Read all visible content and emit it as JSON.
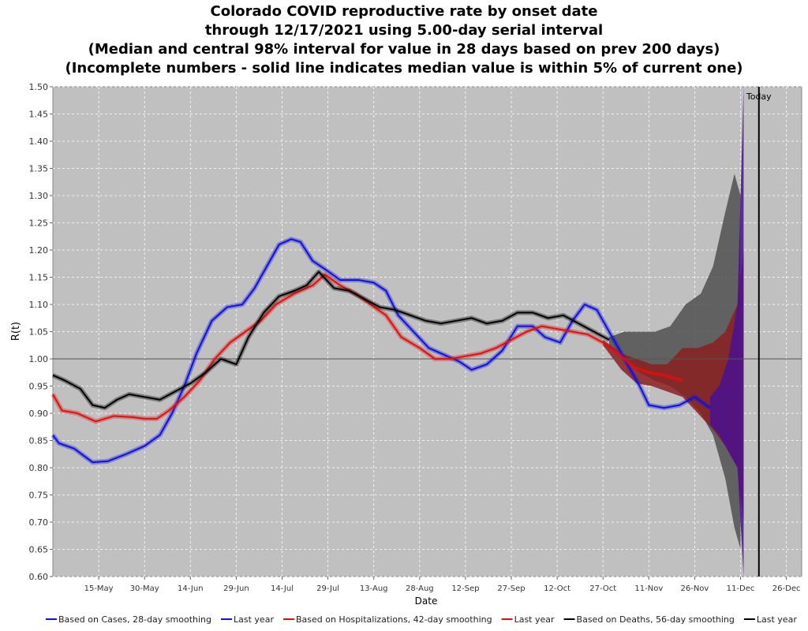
{
  "chart_data": {
    "type": "line",
    "title_lines": [
      "Colorado COVID reproductive rate by onset date",
      "through 12/17/2021 using 5.00-day serial interval",
      "(Median and central 98% interval for value in 28 days based on prev 200 days)",
      "(Incomplete numbers - solid line indicates median value is within 5% of current one)"
    ],
    "xlabel": "Date",
    "ylabel": "R(t)",
    "x_start": "2021-04-30",
    "x_end": "2021-12-31",
    "ylim": [
      0.6,
      1.5
    ],
    "yticks": [
      "0.60",
      "0.65",
      "0.70",
      "0.75",
      "0.80",
      "0.85",
      "0.90",
      "0.95",
      "1.00",
      "1.05",
      "1.10",
      "1.15",
      "1.20",
      "1.25",
      "1.30",
      "1.35",
      "1.40",
      "1.45",
      "1.50"
    ],
    "xticks": [
      {
        "date": "2021-05-15",
        "label": "15-May"
      },
      {
        "date": "2021-05-30",
        "label": "30-May"
      },
      {
        "date": "2021-06-14",
        "label": "14-Jun"
      },
      {
        "date": "2021-06-29",
        "label": "29-Jun"
      },
      {
        "date": "2021-07-14",
        "label": "14-Jul"
      },
      {
        "date": "2021-07-29",
        "label": "29-Jul"
      },
      {
        "date": "2021-08-13",
        "label": "13-Aug"
      },
      {
        "date": "2021-08-28",
        "label": "28-Aug"
      },
      {
        "date": "2021-09-12",
        "label": "12-Sep"
      },
      {
        "date": "2021-09-27",
        "label": "27-Sep"
      },
      {
        "date": "2021-10-12",
        "label": "12-Oct"
      },
      {
        "date": "2021-10-27",
        "label": "27-Oct"
      },
      {
        "date": "2021-11-11",
        "label": "11-Nov"
      },
      {
        "date": "2021-11-26",
        "label": "26-Nov"
      },
      {
        "date": "2021-12-11",
        "label": "11-Dec"
      },
      {
        "date": "2021-12-26",
        "label": "26-Dec"
      }
    ],
    "grid": true,
    "reference_line": {
      "y": 1.0,
      "color": "#555555"
    },
    "today": {
      "date": "2021-12-17",
      "label": "Today"
    },
    "colors": {
      "background": "#c0c0c0",
      "cases": "#1010e0",
      "hosp": "#e01010",
      "deaths": "#000000",
      "deaths_band": "#505050",
      "hosp_band": "#8a2020",
      "cases_band": "#4a1090"
    },
    "series": [
      {
        "name": "Based on Cases, 28-day smoothing",
        "color": "#1010e0",
        "points": [
          [
            "2021-04-30",
            0.86
          ],
          [
            "2021-05-02",
            0.845
          ],
          [
            "2021-05-07",
            0.835
          ],
          [
            "2021-05-13",
            0.81
          ],
          [
            "2021-05-18",
            0.812
          ],
          [
            "2021-05-24",
            0.825
          ],
          [
            "2021-05-30",
            0.84
          ],
          [
            "2021-06-04",
            0.86
          ],
          [
            "2021-06-08",
            0.9
          ],
          [
            "2021-06-12",
            0.95
          ],
          [
            "2021-06-16",
            1.01
          ],
          [
            "2021-06-21",
            1.07
          ],
          [
            "2021-06-26",
            1.095
          ],
          [
            "2021-07-01",
            1.1
          ],
          [
            "2021-07-05",
            1.13
          ],
          [
            "2021-07-09",
            1.17
          ],
          [
            "2021-07-13",
            1.21
          ],
          [
            "2021-07-17",
            1.22
          ],
          [
            "2021-07-20",
            1.215
          ],
          [
            "2021-07-24",
            1.18
          ],
          [
            "2021-07-28",
            1.165
          ],
          [
            "2021-08-02",
            1.145
          ],
          [
            "2021-08-08",
            1.145
          ],
          [
            "2021-08-13",
            1.14
          ],
          [
            "2021-08-17",
            1.125
          ],
          [
            "2021-08-21",
            1.08
          ],
          [
            "2021-08-26",
            1.05
          ],
          [
            "2021-08-31",
            1.02
          ],
          [
            "2021-09-04",
            1.01
          ],
          [
            "2021-09-10",
            0.995
          ],
          [
            "2021-09-14",
            0.98
          ],
          [
            "2021-09-19",
            0.99
          ],
          [
            "2021-09-24",
            1.015
          ],
          [
            "2021-09-29",
            1.06
          ],
          [
            "2021-10-04",
            1.06
          ],
          [
            "2021-10-08",
            1.04
          ],
          [
            "2021-10-13",
            1.03
          ],
          [
            "2021-10-17",
            1.07
          ],
          [
            "2021-10-21",
            1.1
          ],
          [
            "2021-10-25",
            1.09
          ],
          [
            "2021-10-29",
            1.05
          ],
          [
            "2021-11-03",
            1.0
          ],
          [
            "2021-11-08",
            0.95
          ],
          [
            "2021-11-11",
            0.915
          ],
          [
            "2021-11-16",
            0.91
          ],
          [
            "2021-11-21",
            0.915
          ],
          [
            "2021-11-26",
            0.93
          ],
          [
            "2021-12-01",
            0.91
          ]
        ]
      },
      {
        "name": "Last year",
        "color": "#1010e0",
        "points": []
      },
      {
        "name": "Based on Hospitalizations, 42-day smoothing",
        "color": "#e01010",
        "points": [
          [
            "2021-04-30",
            0.935
          ],
          [
            "2021-05-03",
            0.905
          ],
          [
            "2021-05-08",
            0.9
          ],
          [
            "2021-05-14",
            0.885
          ],
          [
            "2021-05-20",
            0.895
          ],
          [
            "2021-05-26",
            0.893
          ],
          [
            "2021-05-30",
            0.89
          ],
          [
            "2021-06-03",
            0.89
          ],
          [
            "2021-06-07",
            0.905
          ],
          [
            "2021-06-12",
            0.93
          ],
          [
            "2021-06-17",
            0.96
          ],
          [
            "2021-06-22",
            1.0
          ],
          [
            "2021-06-27",
            1.03
          ],
          [
            "2021-07-02",
            1.05
          ],
          [
            "2021-07-07",
            1.07
          ],
          [
            "2021-07-12",
            1.1
          ],
          [
            "2021-07-18",
            1.12
          ],
          [
            "2021-07-24",
            1.135
          ],
          [
            "2021-07-28",
            1.155
          ],
          [
            "2021-08-02",
            1.135
          ],
          [
            "2021-08-07",
            1.12
          ],
          [
            "2021-08-12",
            1.1
          ],
          [
            "2021-08-17",
            1.08
          ],
          [
            "2021-08-22",
            1.04
          ],
          [
            "2021-08-28",
            1.02
          ],
          [
            "2021-09-02",
            1.0
          ],
          [
            "2021-09-07",
            1.0
          ],
          [
            "2021-09-12",
            1.005
          ],
          [
            "2021-09-17",
            1.01
          ],
          [
            "2021-09-22",
            1.02
          ],
          [
            "2021-09-27",
            1.035
          ],
          [
            "2021-10-02",
            1.05
          ],
          [
            "2021-10-07",
            1.06
          ],
          [
            "2021-10-12",
            1.055
          ],
          [
            "2021-10-17",
            1.05
          ],
          [
            "2021-10-22",
            1.045
          ],
          [
            "2021-10-27",
            1.03
          ],
          [
            "2021-11-01",
            1.01
          ],
          [
            "2021-11-06",
            0.985
          ],
          [
            "2021-11-11",
            0.975
          ],
          [
            "2021-11-16",
            0.97
          ],
          [
            "2021-11-22",
            0.96
          ]
        ]
      },
      {
        "name": "Last year",
        "color": "#e01010",
        "points": []
      },
      {
        "name": "Based on Deaths, 56-day smoothing",
        "color": "#000000",
        "points": [
          [
            "2021-04-30",
            0.97
          ],
          [
            "2021-05-04",
            0.96
          ],
          [
            "2021-05-09",
            0.945
          ],
          [
            "2021-05-13",
            0.915
          ],
          [
            "2021-05-17",
            0.91
          ],
          [
            "2021-05-21",
            0.925
          ],
          [
            "2021-05-25",
            0.935
          ],
          [
            "2021-05-30",
            0.93
          ],
          [
            "2021-06-04",
            0.925
          ],
          [
            "2021-06-09",
            0.94
          ],
          [
            "2021-06-14",
            0.955
          ],
          [
            "2021-06-19",
            0.975
          ],
          [
            "2021-06-24",
            1.0
          ],
          [
            "2021-06-29",
            0.99
          ],
          [
            "2021-07-03",
            1.04
          ],
          [
            "2021-07-08",
            1.085
          ],
          [
            "2021-07-13",
            1.115
          ],
          [
            "2021-07-18",
            1.125
          ],
          [
            "2021-07-22",
            1.135
          ],
          [
            "2021-07-26",
            1.16
          ],
          [
            "2021-07-31",
            1.13
          ],
          [
            "2021-08-05",
            1.125
          ],
          [
            "2021-08-10",
            1.11
          ],
          [
            "2021-08-15",
            1.095
          ],
          [
            "2021-08-20",
            1.09
          ],
          [
            "2021-08-25",
            1.08
          ],
          [
            "2021-08-30",
            1.07
          ],
          [
            "2021-09-04",
            1.065
          ],
          [
            "2021-09-09",
            1.07
          ],
          [
            "2021-09-14",
            1.075
          ],
          [
            "2021-09-19",
            1.065
          ],
          [
            "2021-09-24",
            1.07
          ],
          [
            "2021-09-29",
            1.085
          ],
          [
            "2021-10-04",
            1.085
          ],
          [
            "2021-10-09",
            1.075
          ],
          [
            "2021-10-14",
            1.08
          ],
          [
            "2021-10-19",
            1.065
          ],
          [
            "2021-10-24",
            1.05
          ],
          [
            "2021-10-29",
            1.035
          ]
        ]
      },
      {
        "name": "Last year",
        "color": "#000000",
        "points": []
      }
    ],
    "bands": [
      {
        "name": "deaths-interval",
        "color": "#505050",
        "points": [
          [
            "2021-10-29",
            1.04,
            1.02
          ],
          [
            "2021-11-03",
            1.05,
            1.0
          ],
          [
            "2021-11-08",
            1.05,
            0.975
          ],
          [
            "2021-11-13",
            1.05,
            0.96
          ],
          [
            "2021-11-18",
            1.06,
            0.95
          ],
          [
            "2021-11-23",
            1.1,
            0.93
          ],
          [
            "2021-11-28",
            1.12,
            0.9
          ],
          [
            "2021-12-02",
            1.17,
            0.86
          ],
          [
            "2021-12-06",
            1.27,
            0.78
          ],
          [
            "2021-12-09",
            1.34,
            0.69
          ],
          [
            "2021-12-11",
            1.3,
            0.65
          ]
        ]
      },
      {
        "name": "hosp-interval",
        "color": "#8a2020",
        "points": [
          [
            "2021-10-27",
            1.035,
            1.025
          ],
          [
            "2021-11-02",
            1.01,
            0.98
          ],
          [
            "2021-11-07",
            1.0,
            0.955
          ],
          [
            "2021-11-12",
            0.99,
            0.95
          ],
          [
            "2021-11-17",
            0.99,
            0.94
          ],
          [
            "2021-11-22",
            1.02,
            0.93
          ],
          [
            "2021-11-27",
            1.02,
            0.9
          ],
          [
            "2021-12-02",
            1.03,
            0.87
          ],
          [
            "2021-12-06",
            1.05,
            0.84
          ],
          [
            "2021-12-10",
            1.1,
            0.8
          ],
          [
            "2021-12-12",
            1.2,
            0.7
          ]
        ]
      },
      {
        "name": "cases-interval",
        "color": "#4a1090",
        "points": [
          [
            "2021-12-01",
            0.93,
            0.88
          ],
          [
            "2021-12-04",
            0.95,
            0.86
          ],
          [
            "2021-12-07",
            1.0,
            0.83
          ],
          [
            "2021-12-10",
            1.1,
            0.8
          ],
          [
            "2021-12-12",
            1.5,
            0.6
          ]
        ]
      }
    ],
    "legend": {
      "placement": "bottom"
    }
  }
}
